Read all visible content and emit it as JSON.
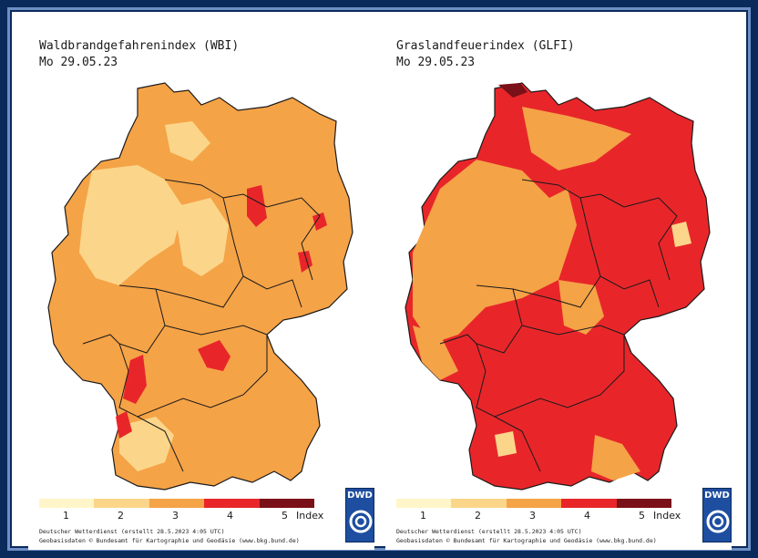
{
  "maps": [
    {
      "title": "Waldbrandgefahrenindex (WBI)",
      "date": "Mo 29.05.23",
      "palette": {
        "base": "#f5a347",
        "low": "#fbd68a",
        "high": "#e8262a",
        "top": "#7a1018"
      },
      "legend": {
        "colors": [
          "#fef6c8",
          "#fbd68a",
          "#f5a347",
          "#e8262a",
          "#7a1018"
        ],
        "labels": [
          "1",
          "2",
          "3",
          "4",
          "5"
        ],
        "unit": "Index"
      },
      "credit_line1": "Deutscher Wetterdienst (erstellt 28.5.2023 4:05 UTC)",
      "credit_line2": "Geobasisdaten © Bundesamt für Kartographie und Geodäsie (www.bkg.bund.de)",
      "logo": "DWD"
    },
    {
      "title": "Graslandfeuerindex (GLFI)",
      "date": "Mo 29.05.23",
      "palette": {
        "base": "#e8262a",
        "low": "#f5a347",
        "high": "#fbd68a",
        "top": "#7a1018"
      },
      "legend": {
        "colors": [
          "#fef6c8",
          "#fbd68a",
          "#f5a347",
          "#e8262a",
          "#7a1018"
        ],
        "labels": [
          "1",
          "2",
          "3",
          "4",
          "5"
        ],
        "unit": "Index"
      },
      "credit_line1": "Deutscher Wetterdienst (erstellt 28.5.2023 4:05 UTC)",
      "credit_line2": "Geobasisdaten © Bundesamt für Kartographie und Geodäsie (www.bkg.bund.de)",
      "logo": "DWD"
    }
  ]
}
